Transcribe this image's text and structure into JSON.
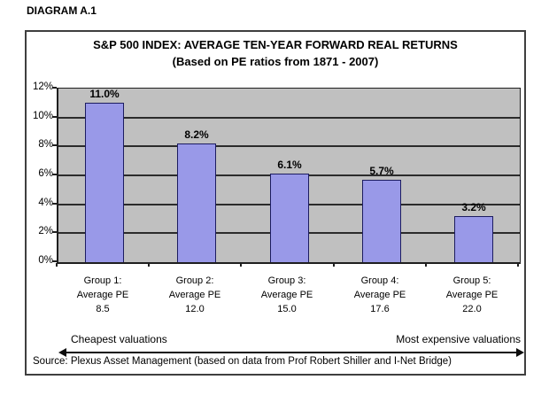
{
  "diagram_label": "DIAGRAM A.1",
  "chart_data": {
    "type": "bar",
    "title": "S&P 500 INDEX: AVERAGE TEN-YEAR FORWARD REAL RETURNS",
    "subtitle": "(Based on PE ratios from 1871 - 2007)",
    "categories": [
      {
        "line1": "Group 1:",
        "line2": "Average PE",
        "line3": "8.5"
      },
      {
        "line1": "Group 2:",
        "line2": "Average PE",
        "line3": "12.0"
      },
      {
        "line1": "Group 3:",
        "line2": "Average PE",
        "line3": "15.0"
      },
      {
        "line1": "Group 4:",
        "line2": "Average PE",
        "line3": "17.6"
      },
      {
        "line1": "Group 5:",
        "line2": "Average PE",
        "line3": "22.0"
      }
    ],
    "values": [
      11.0,
      8.2,
      6.1,
      5.7,
      3.2
    ],
    "value_labels": [
      "11.0%",
      "8.2%",
      "6.1%",
      "5.7%",
      "3.2%"
    ],
    "y_ticks": [
      0,
      2,
      4,
      6,
      8,
      10,
      12
    ],
    "y_tick_labels": [
      "0%",
      "2%",
      "4%",
      "6%",
      "8%",
      "10%",
      "12%"
    ],
    "ylim": [
      0,
      12
    ],
    "grid": true,
    "legend_position": "none",
    "colors": {
      "bar_fill": "#9999e8",
      "bar_border": "#1c1c60",
      "plot_background": "#c0c0c0",
      "gridline": "#2b2b2b"
    }
  },
  "annotations": {
    "axis_left": "Cheapest valuations",
    "axis_right": "Most expensive valuations"
  },
  "source_line": "Source: Plexus Asset Management (based on data from Prof Robert Shiller and I-Net Bridge)"
}
